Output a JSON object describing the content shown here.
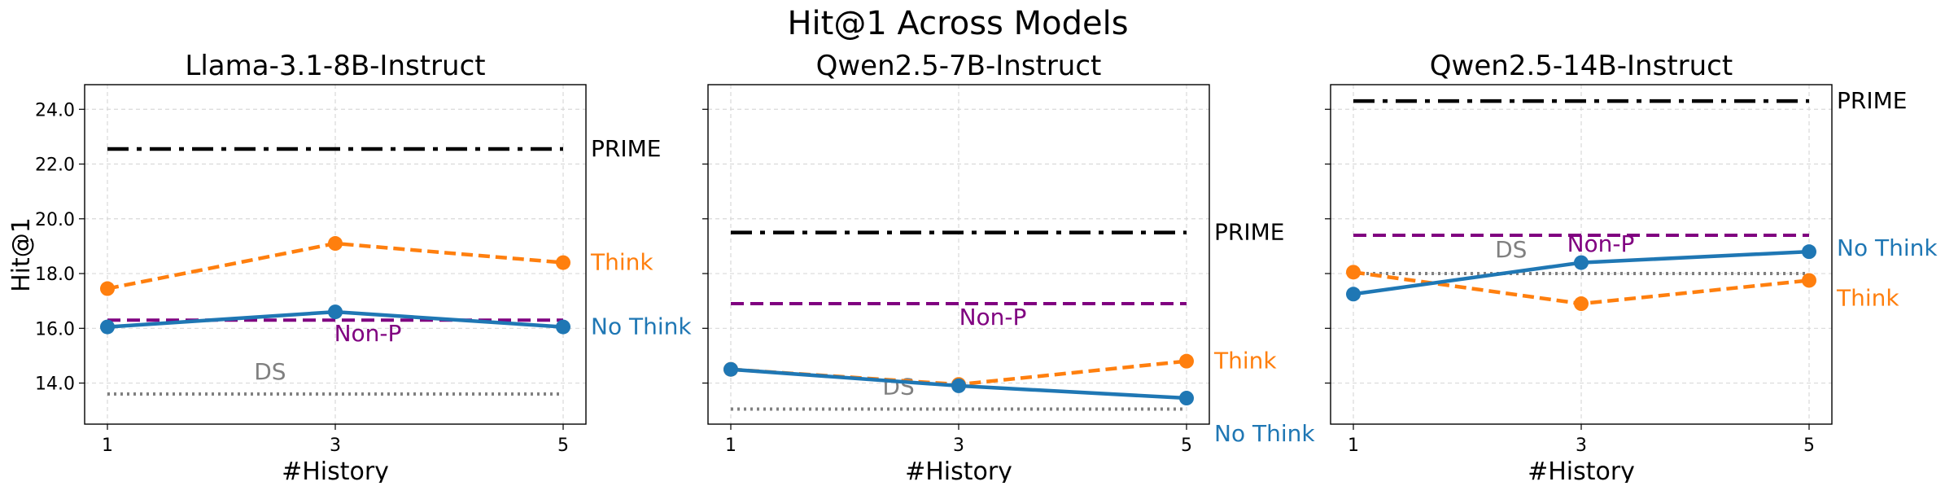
{
  "figure": {
    "title": "Hit@1 Across Models",
    "ylabel": "Hit@1"
  },
  "chart_data": [
    {
      "type": "line",
      "title": "Llama-3.1-8B-Instruct",
      "xlabel": "#History",
      "ylabel": "Hit@1",
      "x": [
        1,
        3,
        5
      ],
      "xticks": [
        "1",
        "3",
        "5"
      ],
      "yticks": [
        "14.0",
        "16.0",
        "18.0",
        "20.0",
        "22.0",
        "24.0"
      ],
      "ylim": [
        12.5,
        24.9
      ],
      "grid": true,
      "series": [
        {
          "name": "Think",
          "style": "dashed-markers",
          "color": "#ff7f0e",
          "values": [
            17.45,
            19.1,
            18.4
          ]
        },
        {
          "name": "No Think",
          "style": "solid-markers",
          "color": "#1f77b4",
          "values": [
            16.05,
            16.6,
            16.05
          ]
        }
      ],
      "reference_lines": [
        {
          "name": "PRIME",
          "style": "dashdot",
          "color": "#000000",
          "value": 22.55
        },
        {
          "name": "Non-P",
          "style": "dashed",
          "color": "#800080",
          "value": 16.3
        },
        {
          "name": "DS",
          "style": "dotted",
          "color": "#808080",
          "value": 13.6
        }
      ]
    },
    {
      "type": "line",
      "title": "Qwen2.5-7B-Instruct",
      "xlabel": "#History",
      "ylabel": "",
      "x": [
        1,
        3,
        5
      ],
      "xticks": [
        "1",
        "3",
        "5"
      ],
      "yticks": [],
      "ylim": [
        12.5,
        24.9
      ],
      "grid": true,
      "series": [
        {
          "name": "Think",
          "style": "dashed-markers",
          "color": "#ff7f0e",
          "values": [
            14.5,
            13.95,
            14.8
          ]
        },
        {
          "name": "No Think",
          "style": "solid-markers",
          "color": "#1f77b4",
          "values": [
            14.5,
            13.9,
            13.45
          ]
        }
      ],
      "reference_lines": [
        {
          "name": "PRIME",
          "style": "dashdot",
          "color": "#000000",
          "value": 19.5
        },
        {
          "name": "Non-P",
          "style": "dashed",
          "color": "#800080",
          "value": 16.9
        },
        {
          "name": "DS",
          "style": "dotted",
          "color": "#808080",
          "value": 13.05
        }
      ]
    },
    {
      "type": "line",
      "title": "Qwen2.5-14B-Instruct",
      "xlabel": "#History",
      "ylabel": "",
      "x": [
        1,
        3,
        5
      ],
      "xticks": [
        "1",
        "3",
        "5"
      ],
      "yticks": [],
      "ylim": [
        12.5,
        24.9
      ],
      "grid": true,
      "series": [
        {
          "name": "Think",
          "style": "dashed-markers",
          "color": "#ff7f0e",
          "values": [
            18.05,
            16.9,
            17.75
          ]
        },
        {
          "name": "No Think",
          "style": "solid-markers",
          "color": "#1f77b4",
          "values": [
            17.25,
            18.4,
            18.8
          ]
        }
      ],
      "reference_lines": [
        {
          "name": "PRIME",
          "style": "dashdot",
          "color": "#000000",
          "value": 24.3
        },
        {
          "name": "Non-P",
          "style": "dashed",
          "color": "#800080",
          "value": 19.4
        },
        {
          "name": "DS",
          "style": "dotted",
          "color": "#808080",
          "value": 18.0
        }
      ]
    }
  ]
}
